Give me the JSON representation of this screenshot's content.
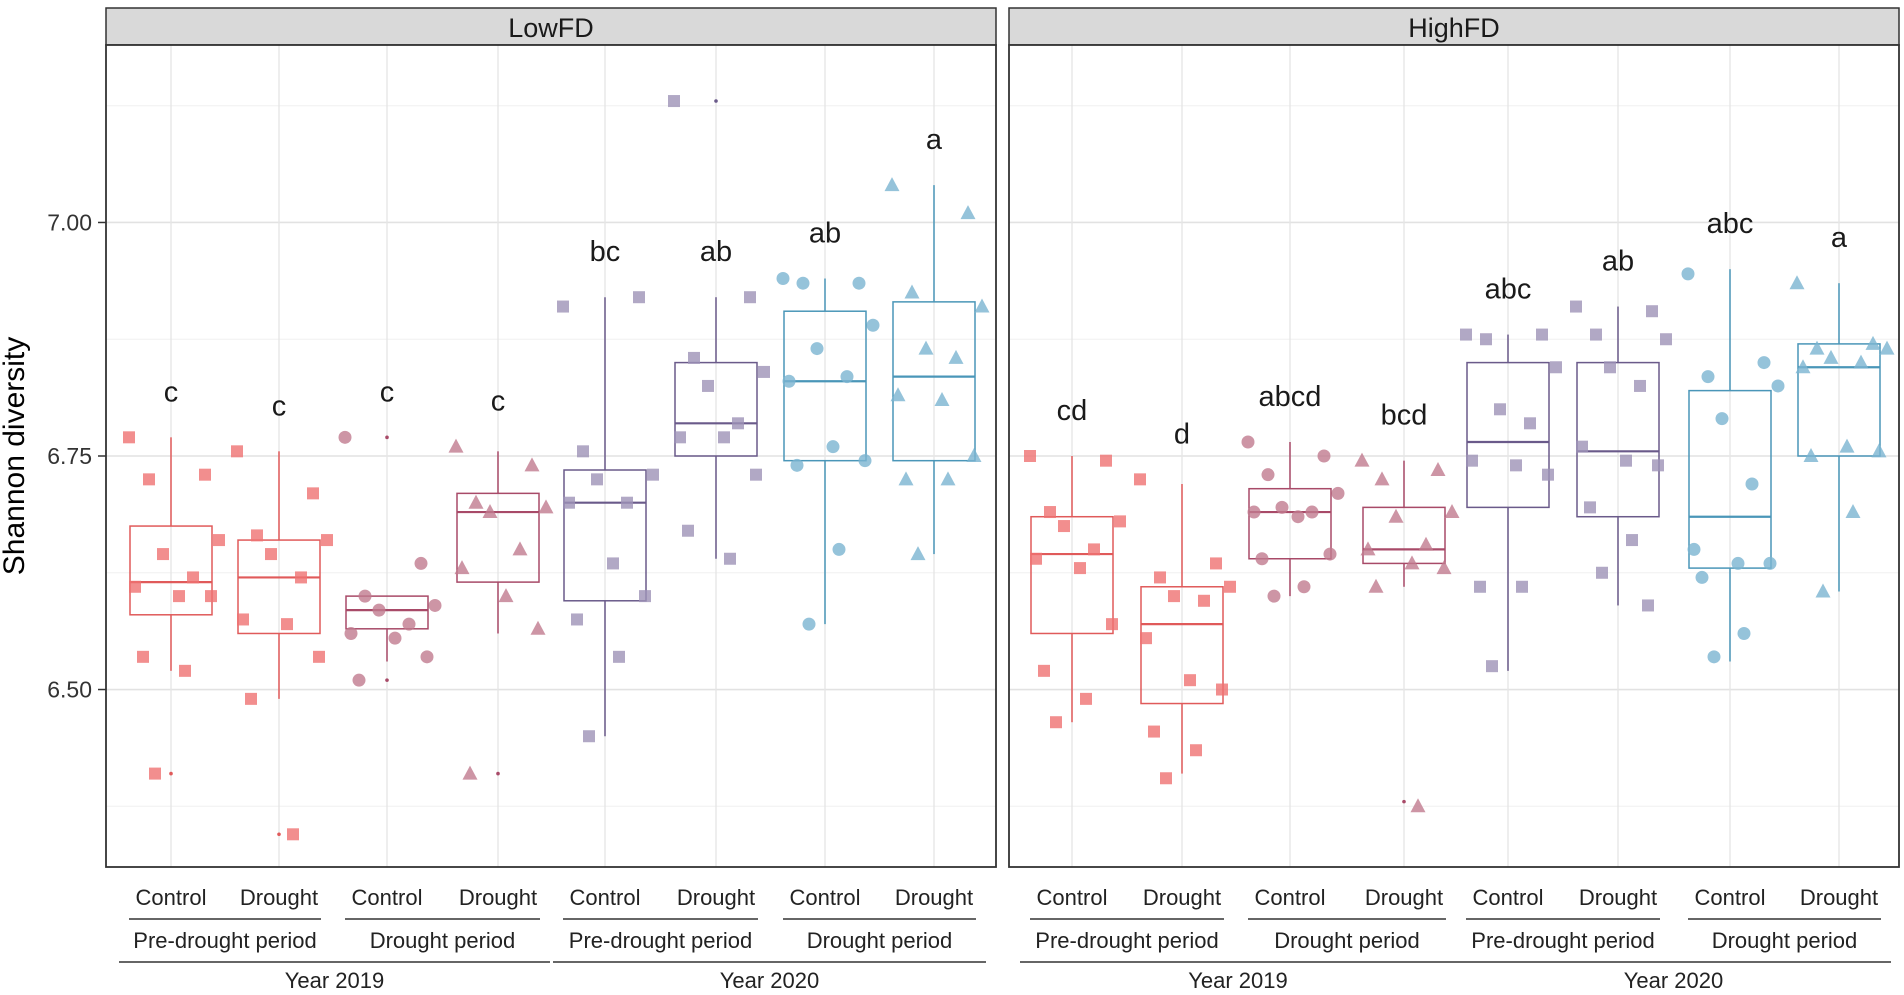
{
  "chart_data": {
    "type": "boxplot",
    "ylabel": "Shannon diversity",
    "ylim": [
      6.31,
      7.19
    ],
    "yticks": [
      6.5,
      6.75,
      7.0
    ],
    "ytick_labels": [
      "6.50",
      "6.75",
      "7.00"
    ],
    "treatments": [
      "Control",
      "Drought",
      "Control",
      "Drought",
      "Control",
      "Drought",
      "Control",
      "Drought"
    ],
    "period_labels": [
      "Pre-drought period",
      "Drought period",
      "Pre-drought period",
      "Drought period"
    ],
    "year_labels": [
      "Year 2019",
      "Year 2020"
    ],
    "colors": {
      "g2019pre": "#e05a5a",
      "g2019dr": "#a84a68",
      "g2020pre": "#6a5a8a",
      "g2020dr": "#4a96b8",
      "pt2019pre": "#ef7272",
      "pt2019dr": "#c17b8f",
      "pt2020pre": "#9d92b6",
      "pt2020dr": "#7ab4d1"
    },
    "panels": [
      {
        "name": "LowFD",
        "groups": [
          {
            "box": {
              "min": 6.52,
              "q1": 6.58,
              "median": 6.615,
              "q3": 6.675,
              "max": 6.77
            },
            "outliers": [
              6.41
            ],
            "letter": "c",
            "points": [
              6.77,
              6.73,
              6.725,
              6.66,
              6.645,
              6.62,
              6.61,
              6.6,
              6.6,
              6.535,
              6.52,
              6.41
            ]
          },
          {
            "box": {
              "min": 6.49,
              "q1": 6.56,
              "median": 6.62,
              "q3": 6.66,
              "max": 6.755
            },
            "outliers": [
              6.345
            ],
            "letter": "c",
            "points": [
              6.755,
              6.71,
              6.665,
              6.66,
              6.645,
              6.62,
              6.575,
              6.57,
              6.535,
              6.49,
              6.345
            ]
          },
          {
            "box": {
              "min": 6.53,
              "q1": 6.565,
              "median": 6.585,
              "q3": 6.6,
              "max": 6.6
            },
            "outliers": [
              6.77,
              6.51
            ],
            "letter": "c",
            "points": [
              6.77,
              6.635,
              6.6,
              6.59,
              6.585,
              6.57,
              6.56,
              6.555,
              6.535,
              6.51
            ]
          },
          {
            "box": {
              "min": 6.56,
              "q1": 6.615,
              "median": 6.69,
              "q3": 6.71,
              "max": 6.755
            },
            "outliers": [
              6.41
            ],
            "letter": "c",
            "points": [
              6.76,
              6.74,
              6.7,
              6.695,
              6.69,
              6.65,
              6.63,
              6.6,
              6.565,
              6.41
            ]
          },
          {
            "box": {
              "min": 6.45,
              "q1": 6.595,
              "median": 6.7,
              "q3": 6.735,
              "max": 6.92
            },
            "outliers": [],
            "letter": "bc",
            "points": [
              6.91,
              6.92,
              6.755,
              6.73,
              6.725,
              6.7,
              6.7,
              6.635,
              6.6,
              6.575,
              6.535,
              6.45
            ]
          },
          {
            "box": {
              "min": 6.64,
              "q1": 6.75,
              "median": 6.785,
              "q3": 6.85,
              "max": 6.92
            },
            "outliers": [
              7.13
            ],
            "letter": "ab",
            "points": [
              7.13,
              6.92,
              6.855,
              6.84,
              6.825,
              6.785,
              6.77,
              6.77,
              6.73,
              6.67,
              6.64
            ]
          },
          {
            "box": {
              "min": 6.57,
              "q1": 6.745,
              "median": 6.83,
              "q3": 6.905,
              "max": 6.94
            },
            "outliers": [],
            "letter": "ab",
            "points": [
              6.94,
              6.935,
              6.935,
              6.89,
              6.865,
              6.835,
              6.83,
              6.76,
              6.745,
              6.74,
              6.65,
              6.57
            ]
          },
          {
            "box": {
              "min": 6.645,
              "q1": 6.745,
              "median": 6.835,
              "q3": 6.915,
              "max": 7.04
            },
            "outliers": [],
            "letter": "a",
            "points": [
              7.04,
              7.01,
              6.925,
              6.91,
              6.865,
              6.855,
              6.815,
              6.81,
              6.75,
              6.725,
              6.725,
              6.645
            ]
          }
        ]
      },
      {
        "name": "HighFD",
        "groups": [
          {
            "box": {
              "min": 6.465,
              "q1": 6.56,
              "median": 6.645,
              "q3": 6.685,
              "max": 6.75
            },
            "outliers": [],
            "letter": "cd",
            "points": [
              6.75,
              6.745,
              6.69,
              6.68,
              6.675,
              6.65,
              6.64,
              6.63,
              6.57,
              6.52,
              6.49,
              6.465
            ]
          },
          {
            "box": {
              "min": 6.41,
              "q1": 6.485,
              "median": 6.57,
              "q3": 6.61,
              "max": 6.72
            },
            "outliers": [],
            "letter": "d",
            "points": [
              6.725,
              6.635,
              6.62,
              6.61,
              6.6,
              6.595,
              6.555,
              6.51,
              6.5,
              6.455,
              6.435,
              6.405
            ]
          },
          {
            "box": {
              "min": 6.6,
              "q1": 6.64,
              "median": 6.69,
              "q3": 6.715,
              "max": 6.765
            },
            "outliers": [],
            "letter": "abcd",
            "points": [
              6.765,
              6.75,
              6.73,
              6.71,
              6.695,
              6.69,
              6.69,
              6.685,
              6.645,
              6.64,
              6.61,
              6.6
            ]
          },
          {
            "box": {
              "min": 6.61,
              "q1": 6.635,
              "median": 6.65,
              "q3": 6.695,
              "max": 6.745
            },
            "outliers": [
              6.38
            ],
            "letter": "bcd",
            "points": [
              6.745,
              6.735,
              6.725,
              6.69,
              6.685,
              6.655,
              6.65,
              6.635,
              6.63,
              6.61,
              6.375
            ]
          },
          {
            "box": {
              "min": 6.52,
              "q1": 6.695,
              "median": 6.765,
              "q3": 6.85,
              "max": 6.88
            },
            "outliers": [],
            "letter": "abc",
            "points": [
              6.88,
              6.88,
              6.875,
              6.845,
              6.8,
              6.785,
              6.745,
              6.74,
              6.73,
              6.61,
              6.61,
              6.525
            ]
          },
          {
            "box": {
              "min": 6.59,
              "q1": 6.685,
              "median": 6.755,
              "q3": 6.85,
              "max": 6.91
            },
            "outliers": [],
            "letter": "ab",
            "points": [
              6.91,
              6.905,
              6.88,
              6.875,
              6.845,
              6.825,
              6.76,
              6.745,
              6.74,
              6.695,
              6.66,
              6.625,
              6.59
            ]
          },
          {
            "box": {
              "min": 6.53,
              "q1": 6.63,
              "median": 6.685,
              "q3": 6.82,
              "max": 6.95
            },
            "outliers": [],
            "letter": "abc",
            "points": [
              6.945,
              6.85,
              6.835,
              6.825,
              6.79,
              6.72,
              6.65,
              6.635,
              6.635,
              6.62,
              6.56,
              6.535
            ]
          },
          {
            "box": {
              "min": 6.605,
              "q1": 6.75,
              "median": 6.845,
              "q3": 6.87,
              "max": 6.935
            },
            "outliers": [],
            "letter": "a",
            "points": [
              6.935,
              6.87,
              6.865,
              6.865,
              6.855,
              6.85,
              6.845,
              6.76,
              6.755,
              6.75,
              6.69,
              6.605
            ]
          }
        ]
      }
    ]
  }
}
